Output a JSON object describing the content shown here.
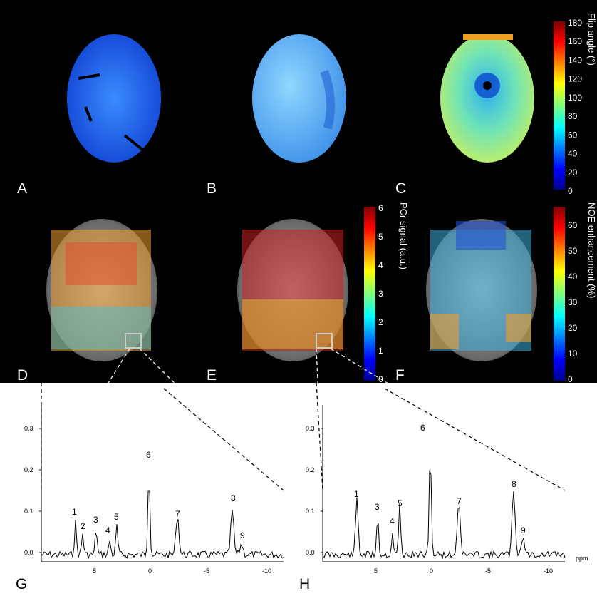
{
  "panel_labels": {
    "A": "A",
    "B": "B",
    "C": "C",
    "D": "D",
    "E": "E",
    "F": "F",
    "G": "G",
    "H": "H"
  },
  "colorbar_flip": {
    "title": "Flip angle (°)",
    "ticks": [
      "180",
      "160",
      "140",
      "120",
      "100",
      "80",
      "60",
      "40",
      "20",
      "0"
    ]
  },
  "colorbar_pcr": {
    "title": "PCr signal (a.u.)",
    "ticks": [
      "6",
      "5",
      "4",
      "3",
      "2",
      "1",
      "0"
    ]
  },
  "colorbar_noe": {
    "title": "NOE enhancement (%)",
    "ticks": [
      "60",
      "50",
      "40",
      "30",
      "20",
      "10",
      "0"
    ]
  },
  "spectrum_g": {
    "yticks": [
      "0.3",
      "0.2",
      "0.1",
      "0.0"
    ],
    "xticks": [
      "5",
      "0",
      "-5",
      "-10"
    ],
    "peaks": [
      "1",
      "2",
      "3",
      "4",
      "5",
      "6",
      "7",
      "8",
      "9"
    ]
  },
  "spectrum_h": {
    "yticks": [
      "0.3",
      "0.2",
      "0.1",
      "0.0"
    ],
    "xticks": [
      "5",
      "0",
      "-5",
      "-10"
    ],
    "xunit": "ppm",
    "peaks": [
      "1",
      "3",
      "4",
      "5",
      "6",
      "7",
      "8",
      "9"
    ]
  },
  "colors": {
    "jet_low": "#00008f",
    "jet_mid": "#7fff7f",
    "jet_high": "#7f0000"
  }
}
